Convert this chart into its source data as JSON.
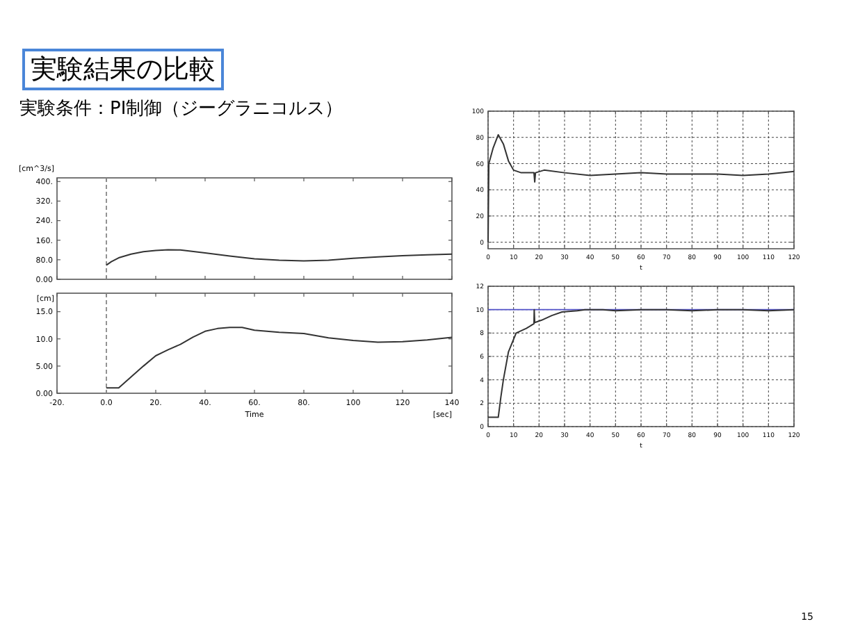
{
  "chart_data": [
    {
      "type": "line",
      "title": "実験結果の比較",
      "subtitle": "実験条件：PI制御（ジーグラニコルス）",
      "ylabel": "[cm^3/s]",
      "xlim": [
        -20,
        140
      ],
      "ylim": [
        0,
        415
      ],
      "xticks": [
        -20,
        0,
        20,
        40,
        60,
        80,
        100,
        120,
        140
      ],
      "yticks": [
        {
          "value": 0,
          "label": "0.00"
        },
        {
          "value": 80,
          "label": "80.0"
        },
        {
          "value": 160,
          "label": "160."
        },
        {
          "value": 240,
          "label": "240."
        },
        {
          "value": 320,
          "label": "320."
        },
        {
          "value": 400,
          "label": "400."
        }
      ],
      "tick_labels": "y",
      "ref_lines": [
        {
          "axis": "x",
          "value": 0,
          "line_style": "dashed",
          "color": "#888888"
        }
      ],
      "series": [
        {
          "color": "#333333",
          "x": [
            0,
            2,
            5,
            10,
            15,
            20,
            25,
            30,
            40,
            50,
            60,
            70,
            80,
            90,
            100,
            110,
            120,
            130,
            140
          ],
          "values": [
            58,
            72,
            88,
            103,
            113,
            118,
            121,
            120,
            108,
            95,
            84,
            78,
            75,
            78,
            86,
            92,
            97,
            100,
            103
          ]
        }
      ]
    },
    {
      "type": "line",
      "xlabel": "Time",
      "ylabel": "[cm]",
      "annotations": [
        "[sec]"
      ],
      "xlim": [
        -20,
        140
      ],
      "ylim": [
        0,
        18.4
      ],
      "xticks": [
        {
          "value": -20,
          "label": "-20."
        },
        {
          "value": 0,
          "label": "0.0"
        },
        {
          "value": 20,
          "label": "20."
        },
        {
          "value": 40,
          "label": "40."
        },
        {
          "value": 60,
          "label": "60."
        },
        {
          "value": 80,
          "label": "80."
        },
        100,
        120,
        140
      ],
      "yticks": [
        {
          "value": 0,
          "label": "0.00"
        },
        {
          "value": 5,
          "label": "5.00"
        },
        {
          "value": 10,
          "label": "10.0"
        },
        {
          "value": 15,
          "label": "15.0"
        }
      ],
      "ref_lines": [
        {
          "axis": "x",
          "value": 0,
          "line_style": "dashed",
          "color": "#888888"
        }
      ],
      "series": [
        {
          "color": "#333333",
          "x": [
            0,
            5,
            10,
            15,
            20,
            25,
            30,
            35,
            40,
            45,
            50,
            55,
            60,
            70,
            80,
            90,
            100,
            110,
            120,
            130,
            140
          ],
          "values": [
            1,
            1,
            3,
            5,
            6.9,
            8,
            9,
            10.3,
            11.4,
            11.9,
            12.1,
            12.1,
            11.6,
            11.2,
            11,
            10.2,
            9.7,
            9.4,
            9.5,
            9.8,
            10.3
          ]
        }
      ]
    },
    {
      "type": "line",
      "xlabel": "t",
      "xlim": [
        0,
        120
      ],
      "ylim": [
        -5,
        100
      ],
      "xticks": [
        0,
        10,
        20,
        30,
        40,
        50,
        60,
        70,
        80,
        90,
        100,
        110,
        120
      ],
      "yticks": [
        0,
        20,
        40,
        60,
        80,
        100
      ],
      "grid": true,
      "series": [
        {
          "color": "#333333",
          "x": [
            0,
            0.3,
            2,
            4,
            6,
            8,
            10,
            13,
            17,
            18,
            18.3,
            18.6,
            22,
            30,
            40,
            50,
            60,
            70,
            80,
            90,
            100,
            110,
            120
          ],
          "values": [
            0,
            60,
            72,
            82,
            75,
            62,
            55,
            53,
            53,
            53,
            46,
            53,
            55,
            53,
            51,
            52,
            53,
            52,
            52,
            52,
            51,
            52,
            54
          ]
        }
      ]
    },
    {
      "type": "line",
      "xlabel": "t",
      "annotations": [
        "15"
      ],
      "xlim": [
        0,
        120
      ],
      "ylim": [
        0,
        12
      ],
      "xticks": [
        0,
        10,
        20,
        30,
        40,
        50,
        60,
        70,
        80,
        90,
        100,
        110,
        120
      ],
      "yticks": [
        0,
        2,
        4,
        6,
        8,
        10,
        12
      ],
      "grid": true,
      "ref_lines": [
        {
          "axis": "y",
          "value": 10,
          "line_style": "solid",
          "color": "#5050c8"
        }
      ],
      "series": [
        {
          "color": "#333333",
          "x": [
            0,
            4,
            5,
            6,
            8,
            11,
            15,
            18,
            18.1,
            18.3,
            21,
            25,
            29,
            35,
            38,
            45,
            50,
            60,
            70,
            80,
            90,
            100,
            110,
            120
          ],
          "values": [
            0.8,
            0.8,
            2.5,
            4,
            6.4,
            8,
            8.4,
            8.8,
            10,
            8.9,
            9.1,
            9.5,
            9.8,
            9.9,
            10,
            10,
            9.9,
            10,
            10,
            9.9,
            10,
            10,
            9.9,
            10
          ]
        }
      ]
    }
  ]
}
